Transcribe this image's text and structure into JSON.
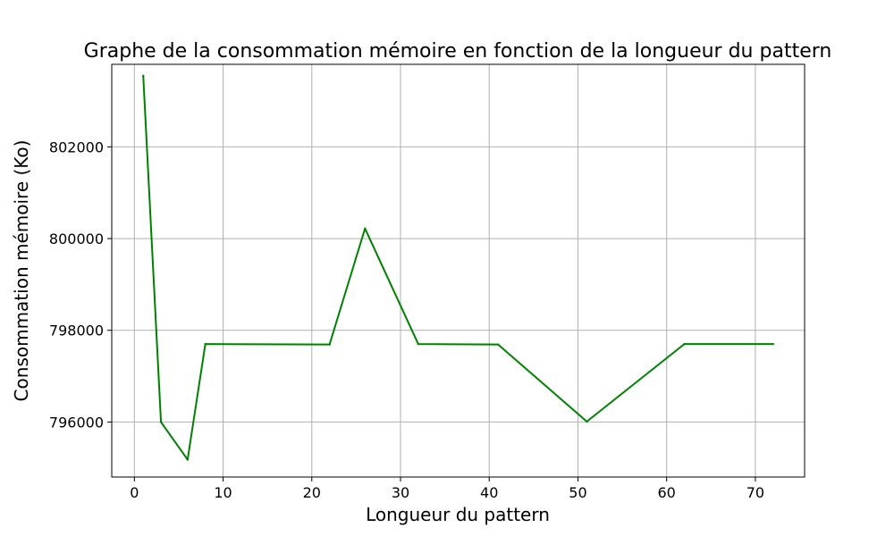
{
  "chart_data": {
    "type": "line",
    "title": "Graphe de la consommation mémoire en fonction de la longueur du pattern",
    "xlabel": "Longueur du pattern",
    "ylabel": "Consommation mémoire (Ko)",
    "xlim": [
      -2.55,
      75.55
    ],
    "ylim": [
      794800,
      803800
    ],
    "xticks": [
      0,
      10,
      20,
      30,
      40,
      50,
      60,
      70
    ],
    "yticks": [
      796000,
      798000,
      800000,
      802000
    ],
    "grid": true,
    "series": [
      {
        "color": "#008000",
        "x": [
          1,
          3,
          6,
          8,
          22,
          26,
          32,
          41,
          51,
          62,
          72
        ],
        "y": [
          803550,
          796000,
          795180,
          797700,
          797690,
          800220,
          797700,
          797690,
          796010,
          797700,
          797700
        ]
      }
    ]
  }
}
